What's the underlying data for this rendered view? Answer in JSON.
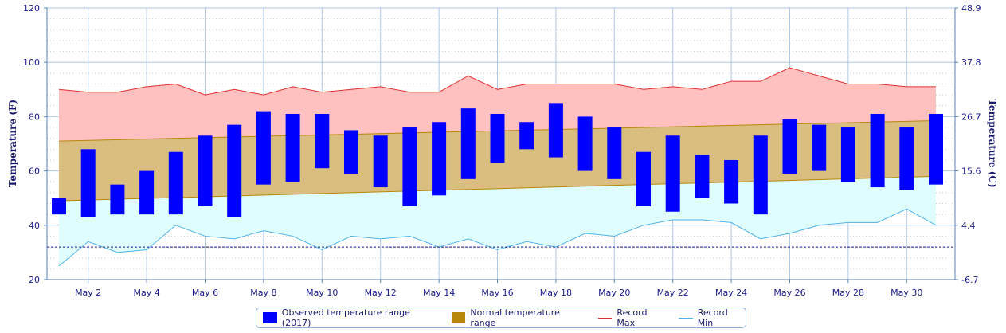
{
  "chart_data": {
    "type": "bar",
    "y_left_label": "Temperature (F)",
    "y_right_label": "Temperature (C)",
    "ylim": [
      20,
      120
    ],
    "y_ticks": [
      20,
      40,
      60,
      80,
      100,
      120
    ],
    "y_right_ticks": [
      "-6.7",
      "4.4",
      "15.6",
      "26.7",
      "37.8",
      "48.9"
    ],
    "x_tick_labels": [
      "May 2",
      "May 4",
      "May 6",
      "May 8",
      "May 10",
      "May 12",
      "May 14",
      "May 16",
      "May 18",
      "May 20",
      "May 22",
      "May 24",
      "May 26",
      "May 28",
      "May 30"
    ],
    "x_tick_days": [
      2,
      4,
      6,
      8,
      10,
      12,
      14,
      16,
      18,
      20,
      22,
      24,
      26,
      28,
      30
    ],
    "days": [
      1,
      2,
      3,
      4,
      5,
      6,
      7,
      8,
      9,
      10,
      11,
      12,
      13,
      14,
      15,
      16,
      17,
      18,
      19,
      20,
      21,
      22,
      23,
      24,
      25,
      26,
      27,
      28,
      29,
      30,
      31
    ],
    "reference_line_y": 32,
    "series": [
      {
        "name": "Observed temperature range (2017)",
        "color": "#0000ff",
        "low": [
          44,
          43,
          44,
          44,
          44,
          47,
          43,
          55,
          56,
          61,
          59,
          54,
          47,
          51,
          57,
          63,
          68,
          65,
          60,
          57,
          47,
          45,
          50,
          48,
          44,
          59,
          60,
          56,
          54,
          53,
          55
        ],
        "high": [
          50,
          68,
          55,
          60,
          67,
          73,
          77,
          82,
          81,
          81,
          75,
          73,
          76,
          78,
          83,
          81,
          78,
          85,
          80,
          76,
          67,
          73,
          66,
          64,
          73,
          79,
          77,
          76,
          81,
          76,
          81
        ]
      },
      {
        "name": "Normal temperature range",
        "color": "#b8860b",
        "low_start": 49,
        "low_end": 58,
        "high_start": 71,
        "high_end": 78.5
      },
      {
        "name": "Record Max",
        "color": "#e03030",
        "values": [
          90,
          89,
          89,
          91,
          92,
          88,
          90,
          88,
          91,
          89,
          90,
          91,
          89,
          89,
          95,
          90,
          92,
          92,
          92,
          92,
          90,
          91,
          90,
          93,
          93,
          98,
          95,
          92,
          92,
          91,
          91
        ]
      },
      {
        "name": "Record Min",
        "color": "#4fb3e8",
        "values": [
          25,
          34,
          30,
          31,
          40,
          36,
          35,
          38,
          36,
          31,
          36,
          35,
          36,
          32,
          35,
          31,
          34,
          32,
          37,
          36,
          40,
          42,
          42,
          41,
          35,
          37,
          40,
          41,
          41,
          46,
          40
        ]
      }
    ]
  }
}
